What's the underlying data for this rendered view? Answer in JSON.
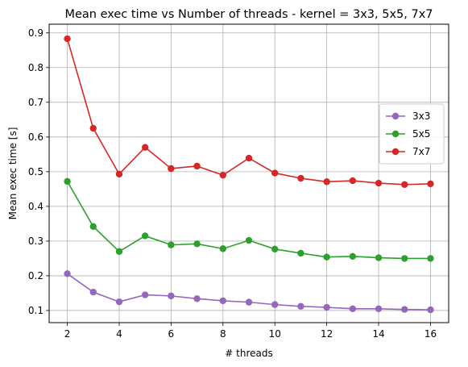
{
  "chart_data": {
    "type": "line",
    "title": "Mean exec time vs Number of threads - kernel = 3x3, 5x5, 7x7",
    "xlabel": "# threads",
    "ylabel": "Mean exec time [s]",
    "x": [
      2,
      3,
      4,
      5,
      6,
      7,
      8,
      9,
      10,
      11,
      12,
      13,
      14,
      15,
      16
    ],
    "xlim": [
      1.3,
      16.7
    ],
    "ylim": [
      0.065,
      0.925
    ],
    "xticks": [
      2,
      4,
      6,
      8,
      10,
      12,
      14,
      16
    ],
    "yticks": [
      0.1,
      0.2,
      0.3,
      0.4,
      0.5,
      0.6,
      0.7,
      0.8,
      0.9
    ],
    "grid": true,
    "legend_position": "center-right",
    "series": [
      {
        "name": "3x3",
        "color": "#9467bd",
        "marker": "circle",
        "values": [
          0.206,
          0.153,
          0.125,
          0.145,
          0.142,
          0.134,
          0.128,
          0.124,
          0.117,
          0.112,
          0.109,
          0.105,
          0.105,
          0.103,
          0.102
        ]
      },
      {
        "name": "5x5",
        "color": "#2ca02c",
        "marker": "circle",
        "values": [
          0.472,
          0.342,
          0.27,
          0.315,
          0.289,
          0.292,
          0.278,
          0.302,
          0.277,
          0.265,
          0.254,
          0.256,
          0.252,
          0.25,
          0.25
        ]
      },
      {
        "name": "7x7",
        "color": "#d62728",
        "marker": "circle",
        "values": [
          0.883,
          0.625,
          0.493,
          0.57,
          0.509,
          0.516,
          0.49,
          0.539,
          0.496,
          0.481,
          0.471,
          0.474,
          0.467,
          0.463,
          0.465
        ]
      }
    ]
  }
}
